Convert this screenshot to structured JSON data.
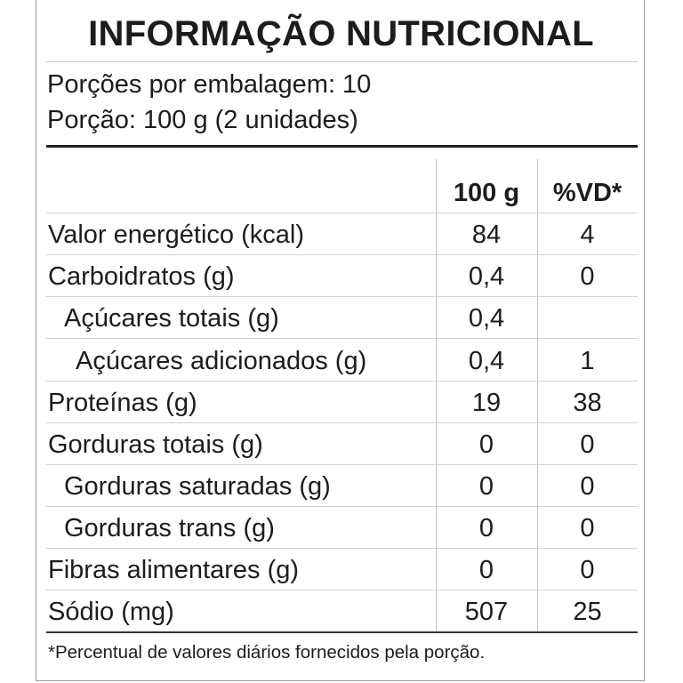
{
  "label": {
    "title": "INFORMAÇÃO NUTRICIONAL",
    "servings_per_package": "Porções por embalagem: 10",
    "serving_size": "Porção: 100 g (2 unidades)",
    "columns": [
      "100 g",
      "%VD*"
    ],
    "rows": [
      {
        "name": "Valor energético (kcal)",
        "indent": 0,
        "per_100g": "84",
        "vd": "4"
      },
      {
        "name": "Carboidratos (g)",
        "indent": 0,
        "per_100g": "0,4",
        "vd": "0"
      },
      {
        "name": "Açúcares totais (g)",
        "indent": 1,
        "per_100g": "0,4",
        "vd": ""
      },
      {
        "name": "Açúcares adicionados (g)",
        "indent": 2,
        "per_100g": "0,4",
        "vd": "1"
      },
      {
        "name": "Proteínas (g)",
        "indent": 0,
        "per_100g": "19",
        "vd": "38"
      },
      {
        "name": "Gorduras totais (g)",
        "indent": 0,
        "per_100g": "0",
        "vd": "0"
      },
      {
        "name": "Gorduras saturadas (g)",
        "indent": 1,
        "per_100g": "0",
        "vd": "0"
      },
      {
        "name": "Gorduras trans (g)",
        "indent": 1,
        "per_100g": "0",
        "vd": "0"
      },
      {
        "name": "Fibras alimentares (g)",
        "indent": 0,
        "per_100g": "0",
        "vd": "0"
      },
      {
        "name": "Sódio (mg)",
        "indent": 0,
        "per_100g": "507",
        "vd": "25"
      }
    ],
    "footnote": "*Percentual de valores diários fornecidos pela porção."
  }
}
